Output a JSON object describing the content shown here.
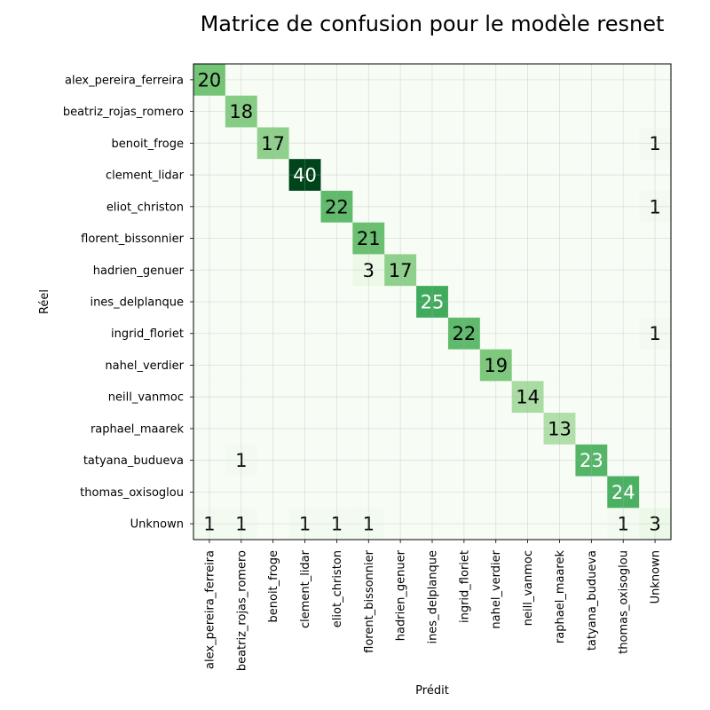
{
  "chart_data": {
    "type": "heatmap",
    "title": "Matrice de confusion pour le modèle resnet",
    "xlabel": "Prédit",
    "ylabel": "Réel",
    "grid": true,
    "colormap": "Greens",
    "colors": {
      "low": "#f7fcf5",
      "high": "#00441b"
    },
    "value_range": [
      0,
      40
    ],
    "x_categories": [
      "alex_pereira_ferreira",
      "beatriz_rojas_romero",
      "benoit_froge",
      "clement_lidar",
      "eliot_christon",
      "florent_bissonnier",
      "hadrien_genuer",
      "ines_delplanque",
      "ingrid_floriet",
      "nahel_verdier",
      "neill_vanmoc",
      "raphael_maarek",
      "tatyana_budueva",
      "thomas_oxisoglou",
      "Unknown"
    ],
    "y_categories": [
      "alex_pereira_ferreira",
      "beatriz_rojas_romero",
      "benoit_froge",
      "clement_lidar",
      "eliot_christon",
      "florent_bissonnier",
      "hadrien_genuer",
      "ines_delplanque",
      "ingrid_floriet",
      "nahel_verdier",
      "neill_vanmoc",
      "raphael_maarek",
      "tatyana_budueva",
      "thomas_oxisoglou",
      "Unknown"
    ],
    "matrix": [
      [
        20,
        0,
        0,
        0,
        0,
        0,
        0,
        0,
        0,
        0,
        0,
        0,
        0,
        0,
        0
      ],
      [
        0,
        18,
        0,
        0,
        0,
        0,
        0,
        0,
        0,
        0,
        0,
        0,
        0,
        0,
        0
      ],
      [
        0,
        0,
        17,
        0,
        0,
        0,
        0,
        0,
        0,
        0,
        0,
        0,
        0,
        0,
        1
      ],
      [
        0,
        0,
        0,
        40,
        0,
        0,
        0,
        0,
        0,
        0,
        0,
        0,
        0,
        0,
        0
      ],
      [
        0,
        0,
        0,
        0,
        22,
        0,
        0,
        0,
        0,
        0,
        0,
        0,
        0,
        0,
        1
      ],
      [
        0,
        0,
        0,
        0,
        0,
        21,
        0,
        0,
        0,
        0,
        0,
        0,
        0,
        0,
        0
      ],
      [
        0,
        0,
        0,
        0,
        0,
        3,
        17,
        0,
        0,
        0,
        0,
        0,
        0,
        0,
        0
      ],
      [
        0,
        0,
        0,
        0,
        0,
        0,
        0,
        25,
        0,
        0,
        0,
        0,
        0,
        0,
        0
      ],
      [
        0,
        0,
        0,
        0,
        0,
        0,
        0,
        0,
        22,
        0,
        0,
        0,
        0,
        0,
        1
      ],
      [
        0,
        0,
        0,
        0,
        0,
        0,
        0,
        0,
        0,
        19,
        0,
        0,
        0,
        0,
        0
      ],
      [
        0,
        0,
        0,
        0,
        0,
        0,
        0,
        0,
        0,
        0,
        14,
        0,
        0,
        0,
        0
      ],
      [
        0,
        0,
        0,
        0,
        0,
        0,
        0,
        0,
        0,
        0,
        0,
        13,
        0,
        0,
        0
      ],
      [
        0,
        1,
        0,
        0,
        0,
        0,
        0,
        0,
        0,
        0,
        0,
        0,
        23,
        0,
        0
      ],
      [
        0,
        0,
        0,
        0,
        0,
        0,
        0,
        0,
        0,
        0,
        0,
        0,
        0,
        24,
        0
      ],
      [
        1,
        1,
        0,
        1,
        1,
        1,
        0,
        0,
        0,
        0,
        0,
        0,
        0,
        1,
        3
      ]
    ]
  }
}
